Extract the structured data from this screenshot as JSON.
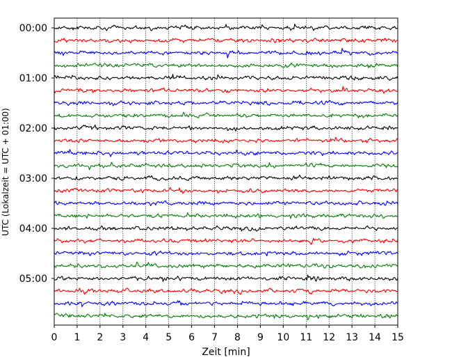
{
  "chart_data": {
    "type": "line",
    "title": "",
    "xlabel": "Zeit  [min]",
    "ylabel": "UTC (Lokalzeit = UTC + 01:00)",
    "xlim": [
      0,
      15
    ],
    "x_ticks": [
      0,
      1,
      2,
      3,
      4,
      5,
      6,
      7,
      8,
      9,
      10,
      11,
      12,
      13,
      14,
      15
    ],
    "x_tick_labels": [
      "0",
      "1",
      "2",
      "3",
      "4",
      "5",
      "6",
      "7",
      "8",
      "9",
      "10",
      "11",
      "12",
      "13",
      "14",
      "15"
    ],
    "y_tick_labels": [
      "00:00",
      "01:00",
      "02:00",
      "03:00",
      "04:00",
      "05:00"
    ],
    "minutes_per_line": 15,
    "lines_per_hour": 4,
    "line_count": 24,
    "line_colors": [
      "#000000",
      "#ff0000",
      "#0000ff",
      "#008000"
    ],
    "x_grid": true,
    "annotations": []
  }
}
